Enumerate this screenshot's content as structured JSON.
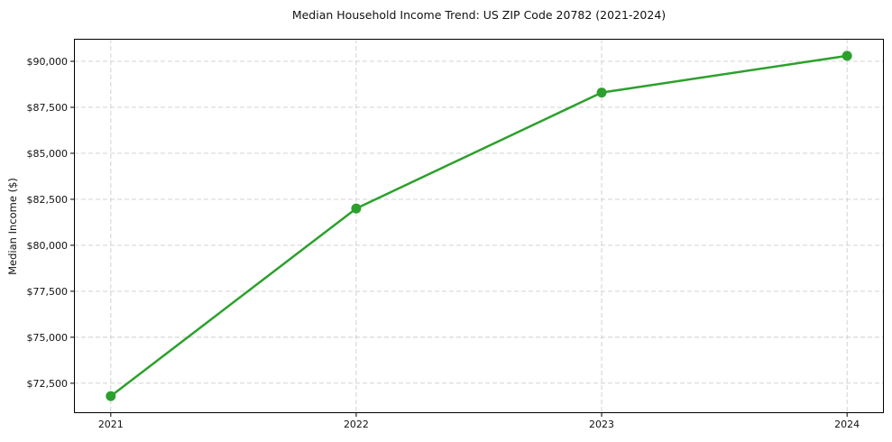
{
  "chart_data": {
    "type": "line",
    "title": "Median Household Income Trend: US ZIP Code 20782 (2021-2024)",
    "xlabel": "",
    "ylabel": "Median Income ($)",
    "x": [
      2021,
      2022,
      2023,
      2024
    ],
    "values": [
      71800,
      82000,
      88300,
      90300
    ],
    "xtick_labels": [
      "2021",
      "2022",
      "2023",
      "2024"
    ],
    "yticks": [
      72500,
      75000,
      77500,
      80000,
      82500,
      85000,
      87500,
      90000
    ],
    "ytick_labels": [
      "$72,500",
      "$75,000",
      "$77,500",
      "$80,000",
      "$82,500",
      "$85,000",
      "$87,500",
      "$90,000"
    ],
    "xlim": [
      2020.85,
      2024.15
    ],
    "ylim": [
      70875,
      91225
    ],
    "grid": true,
    "grid_style": "dashed",
    "grid_color": "#cccccc",
    "line_color": "#2ca02c",
    "marker_color": "#2ca02c",
    "spine_color": "#000000",
    "text_color": "#111111",
    "legend_position": "none"
  }
}
